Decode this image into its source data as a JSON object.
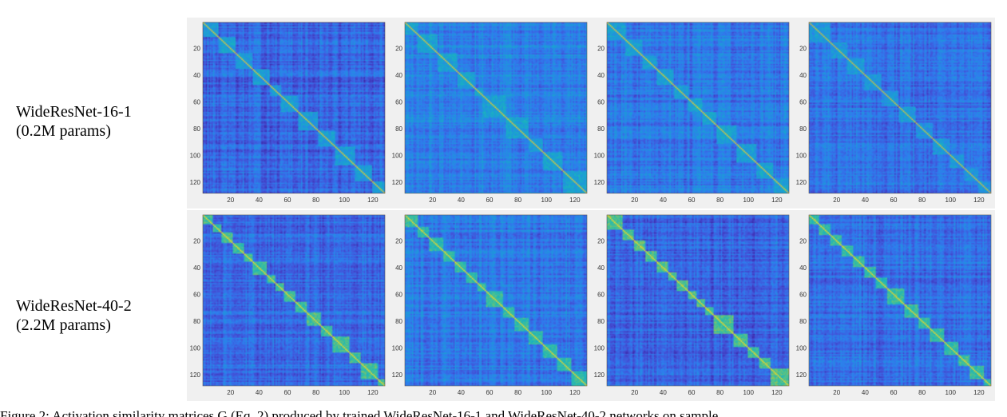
{
  "rows": [
    {
      "label_line1": "WideResNet-16-1",
      "label_line2": "(0.2M params)"
    },
    {
      "label_line1": "WideResNet-40-2",
      "label_line2": "(2.2M params)"
    }
  ],
  "caption": "Figure 2: Activation similarity matrices G (Eq. 2) produced by trained WideResNet-16-1 and WideResNet-40-2 networks on sample",
  "colormap": [
    "#3e26a8",
    "#4352d8",
    "#2f7cee",
    "#1c9bd8",
    "#1ab1c0",
    "#3bbf9d",
    "#8ec55b",
    "#d9c13c",
    "#f9e41d"
  ],
  "chart_data": [
    {
      "type": "heatmap",
      "model": "WideResNet-16-1",
      "panel": 1,
      "matrix_size": 128,
      "xlim": [
        1,
        128
      ],
      "ylim": [
        1,
        128
      ],
      "xticks": [
        20,
        40,
        60,
        80,
        100,
        120
      ],
      "yticks": [
        20,
        40,
        60,
        80,
        100,
        120
      ],
      "diagonal_blocks": [
        [
          1,
          12
        ],
        [
          12,
          24
        ],
        [
          24,
          36
        ],
        [
          36,
          48
        ],
        [
          48,
          56
        ],
        [
          56,
          68
        ],
        [
          68,
          82
        ],
        [
          82,
          94
        ],
        [
          94,
          108
        ],
        [
          108,
          120
        ],
        [
          120,
          128
        ]
      ],
      "block_level": 0.38,
      "background_level": 0.18,
      "diagonal_level": 0.9
    },
    {
      "type": "heatmap",
      "model": "WideResNet-16-1",
      "panel": 2,
      "matrix_size": 128,
      "xlim": [
        1,
        128
      ],
      "ylim": [
        1,
        128
      ],
      "xticks": [
        20,
        40,
        60,
        80,
        100,
        120
      ],
      "yticks": [
        20,
        40,
        60,
        80,
        100,
        120
      ],
      "diagonal_blocks": [
        [
          1,
          10
        ],
        [
          10,
          24
        ],
        [
          24,
          38
        ],
        [
          38,
          50
        ],
        [
          50,
          56
        ],
        [
          56,
          72
        ],
        [
          72,
          88
        ],
        [
          88,
          98
        ],
        [
          98,
          112
        ],
        [
          112,
          128
        ]
      ],
      "block_level": 0.42,
      "background_level": 0.28,
      "diagonal_level": 0.9
    },
    {
      "type": "heatmap",
      "model": "WideResNet-16-1",
      "panel": 3,
      "matrix_size": 128,
      "xlim": [
        1,
        128
      ],
      "ylim": [
        1,
        128
      ],
      "xticks": [
        20,
        40,
        60,
        80,
        100,
        120
      ],
      "yticks": [
        20,
        40,
        60,
        80,
        100,
        120
      ],
      "diagonal_blocks": [
        [
          1,
          14
        ],
        [
          14,
          26
        ],
        [
          26,
          36
        ],
        [
          36,
          48
        ],
        [
          48,
          58
        ],
        [
          58,
          68
        ],
        [
          68,
          78
        ],
        [
          78,
          92
        ],
        [
          92,
          106
        ],
        [
          106,
          118
        ],
        [
          118,
          128
        ]
      ],
      "block_level": 0.4,
      "background_level": 0.24,
      "diagonal_level": 0.9
    },
    {
      "type": "heatmap",
      "model": "WideResNet-16-1",
      "panel": 4,
      "matrix_size": 128,
      "xlim": [
        1,
        128
      ],
      "ylim": [
        1,
        128
      ],
      "xticks": [
        20,
        40,
        60,
        80,
        100,
        120
      ],
      "yticks": [
        20,
        40,
        60,
        80,
        100,
        120
      ],
      "diagonal_blocks": [
        [
          1,
          16
        ],
        [
          16,
          28
        ],
        [
          28,
          40
        ],
        [
          40,
          52
        ],
        [
          52,
          64
        ],
        [
          64,
          76
        ],
        [
          76,
          88
        ],
        [
          88,
          100
        ],
        [
          100,
          110
        ],
        [
          110,
          120
        ],
        [
          120,
          128
        ]
      ],
      "block_level": 0.36,
      "background_level": 0.22,
      "diagonal_level": 0.85
    },
    {
      "type": "heatmap",
      "model": "WideResNet-40-2",
      "panel": 1,
      "matrix_size": 128,
      "xlim": [
        1,
        128
      ],
      "ylim": [
        1,
        128
      ],
      "xticks": [
        20,
        40,
        60,
        80,
        100,
        120
      ],
      "yticks": [
        20,
        40,
        60,
        80,
        100,
        120
      ],
      "diagonal_blocks": [
        [
          1,
          8
        ],
        [
          8,
          14
        ],
        [
          14,
          22
        ],
        [
          22,
          30
        ],
        [
          30,
          36
        ],
        [
          36,
          46
        ],
        [
          46,
          52
        ],
        [
          52,
          58
        ],
        [
          58,
          66
        ],
        [
          66,
          74
        ],
        [
          74,
          84
        ],
        [
          84,
          92
        ],
        [
          92,
          104
        ],
        [
          104,
          112
        ],
        [
          112,
          124
        ],
        [
          124,
          128
        ]
      ],
      "block_level": 0.62,
      "background_level": 0.2,
      "diagonal_level": 0.95
    },
    {
      "type": "heatmap",
      "model": "WideResNet-40-2",
      "panel": 2,
      "matrix_size": 128,
      "xlim": [
        1,
        128
      ],
      "ylim": [
        1,
        128
      ],
      "xticks": [
        20,
        40,
        60,
        80,
        100,
        120
      ],
      "yticks": [
        20,
        40,
        60,
        80,
        100,
        120
      ],
      "diagonal_blocks": [
        [
          1,
          10
        ],
        [
          10,
          18
        ],
        [
          18,
          28
        ],
        [
          28,
          36
        ],
        [
          36,
          44
        ],
        [
          44,
          52
        ],
        [
          52,
          58
        ],
        [
          58,
          70
        ],
        [
          70,
          78
        ],
        [
          78,
          88
        ],
        [
          88,
          98
        ],
        [
          98,
          108
        ],
        [
          108,
          118
        ],
        [
          118,
          128
        ]
      ],
      "block_level": 0.58,
      "background_level": 0.24,
      "diagonal_level": 0.95
    },
    {
      "type": "heatmap",
      "model": "WideResNet-40-2",
      "panel": 3,
      "matrix_size": 128,
      "xlim": [
        1,
        128
      ],
      "ylim": [
        1,
        128
      ],
      "xticks": [
        20,
        40,
        60,
        80,
        100,
        120
      ],
      "yticks": [
        20,
        40,
        60,
        80,
        100,
        120
      ],
      "diagonal_blocks": [
        [
          1,
          12
        ],
        [
          12,
          20
        ],
        [
          20,
          28
        ],
        [
          28,
          36
        ],
        [
          36,
          44
        ],
        [
          44,
          50
        ],
        [
          50,
          58
        ],
        [
          58,
          64
        ],
        [
          64,
          70
        ],
        [
          70,
          76
        ],
        [
          76,
          90
        ],
        [
          90,
          100
        ],
        [
          100,
          108
        ],
        [
          108,
          116
        ],
        [
          116,
          128
        ]
      ],
      "block_level": 0.64,
      "background_level": 0.18,
      "diagonal_level": 0.95
    },
    {
      "type": "heatmap",
      "model": "WideResNet-40-2",
      "panel": 4,
      "matrix_size": 128,
      "xlim": [
        1,
        128
      ],
      "ylim": [
        1,
        128
      ],
      "xticks": [
        20,
        40,
        60,
        80,
        100,
        120
      ],
      "yticks": [
        20,
        40,
        60,
        80,
        100,
        120
      ],
      "diagonal_blocks": [
        [
          1,
          8
        ],
        [
          8,
          16
        ],
        [
          16,
          24
        ],
        [
          24,
          32
        ],
        [
          32,
          40
        ],
        [
          40,
          48
        ],
        [
          48,
          56
        ],
        [
          56,
          68
        ],
        [
          68,
          78
        ],
        [
          78,
          86
        ],
        [
          86,
          96
        ],
        [
          96,
          106
        ],
        [
          106,
          114
        ],
        [
          114,
          124
        ],
        [
          124,
          128
        ]
      ],
      "block_level": 0.6,
      "background_level": 0.22,
      "diagonal_level": 0.95
    }
  ]
}
